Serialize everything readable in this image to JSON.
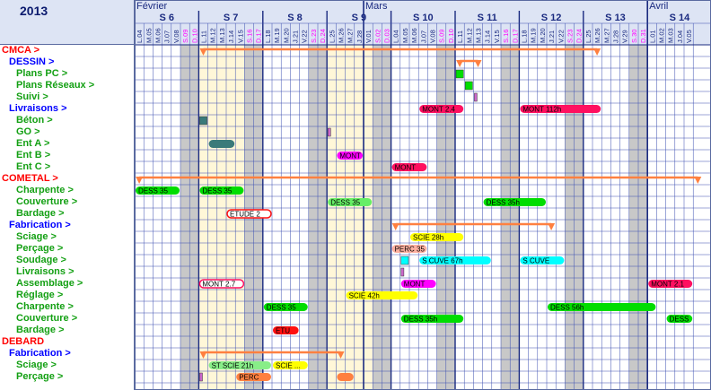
{
  "year": "2013",
  "months": [
    {
      "label": "Février",
      "start_day": 0
    },
    {
      "label": "Mars",
      "start_day": 25
    },
    {
      "label": "Avril",
      "start_day": 56
    }
  ],
  "weeks": [
    {
      "label": "S 6",
      "start_day": 0
    },
    {
      "label": "S 7",
      "start_day": 7
    },
    {
      "label": "S 8",
      "start_day": 14
    },
    {
      "label": "S 9",
      "start_day": 21
    },
    {
      "label": "S 10",
      "start_day": 28
    },
    {
      "label": "S 11",
      "start_day": 35
    },
    {
      "label": "S 12",
      "start_day": 42
    },
    {
      "label": "S 13",
      "start_day": 49
    },
    {
      "label": "S 14",
      "start_day": 56
    }
  ],
  "days": [
    {
      "label": "L.04",
      "weekend": false
    },
    {
      "label": "M.05",
      "weekend": false
    },
    {
      "label": "M.06",
      "weekend": false
    },
    {
      "label": "J.07",
      "weekend": false
    },
    {
      "label": "V.08",
      "weekend": false
    },
    {
      "label": "S.09",
      "weekend": true
    },
    {
      "label": "D.10",
      "weekend": true
    },
    {
      "label": "L.11",
      "weekend": false
    },
    {
      "label": "M.12",
      "weekend": false
    },
    {
      "label": "M.13",
      "weekend": false
    },
    {
      "label": "J.14",
      "weekend": false
    },
    {
      "label": "V.15",
      "weekend": false
    },
    {
      "label": "S.16",
      "weekend": true
    },
    {
      "label": "D.17",
      "weekend": true
    },
    {
      "label": "L.18",
      "weekend": false
    },
    {
      "label": "M.19",
      "weekend": false
    },
    {
      "label": "M.20",
      "weekend": false
    },
    {
      "label": "J.21",
      "weekend": false
    },
    {
      "label": "V.22",
      "weekend": false
    },
    {
      "label": "S.23",
      "weekend": true
    },
    {
      "label": "D.24",
      "weekend": true
    },
    {
      "label": "L.25",
      "weekend": false
    },
    {
      "label": "M.26",
      "weekend": false
    },
    {
      "label": "M.27",
      "weekend": false
    },
    {
      "label": "J.28",
      "weekend": false
    },
    {
      "label": "V.01",
      "weekend": false
    },
    {
      "label": "S.02",
      "weekend": true
    },
    {
      "label": "D.03",
      "weekend": true
    },
    {
      "label": "L.04",
      "weekend": false
    },
    {
      "label": "M.05",
      "weekend": false
    },
    {
      "label": "M.06",
      "weekend": false
    },
    {
      "label": "J.07",
      "weekend": false
    },
    {
      "label": "V.08",
      "weekend": false
    },
    {
      "label": "S.09",
      "weekend": true
    },
    {
      "label": "D.10",
      "weekend": true
    },
    {
      "label": "L.11",
      "weekend": false
    },
    {
      "label": "M.12",
      "weekend": false
    },
    {
      "label": "M.13",
      "weekend": false
    },
    {
      "label": "J.14",
      "weekend": false
    },
    {
      "label": "V.15",
      "weekend": false
    },
    {
      "label": "S.16",
      "weekend": true
    },
    {
      "label": "D.17",
      "weekend": true
    },
    {
      "label": "L.18",
      "weekend": false
    },
    {
      "label": "M.19",
      "weekend": false
    },
    {
      "label": "M.20",
      "weekend": false
    },
    {
      "label": "J.21",
      "weekend": false
    },
    {
      "label": "V.22",
      "weekend": false
    },
    {
      "label": "S.23",
      "weekend": true
    },
    {
      "label": "D.24",
      "weekend": true
    },
    {
      "label": "L.25",
      "weekend": false
    },
    {
      "label": "M.26",
      "weekend": false
    },
    {
      "label": "M.27",
      "weekend": false
    },
    {
      "label": "J.28",
      "weekend": false
    },
    {
      "label": "V.29",
      "weekend": false
    },
    {
      "label": "S.30",
      "weekend": true
    },
    {
      "label": "D.31",
      "weekend": true
    },
    {
      "label": "L.01",
      "weekend": false
    },
    {
      "label": "M.02",
      "weekend": false
    },
    {
      "label": "M.03",
      "weekend": false
    },
    {
      "label": "J.04",
      "weekend": false
    },
    {
      "label": "V.05",
      "weekend": false
    }
  ],
  "holiday_days": [
    7,
    8,
    9,
    10,
    11,
    21,
    22,
    23,
    24,
    25
  ],
  "colors": {
    "group": "#ff0000",
    "subgroup": "#0000ff",
    "task": "#14a014",
    "weekend_text": "#ff00ff",
    "weekend_fill": "#c8c8c8",
    "holiday_fill": "#fff7d8",
    "grid_line": "#3a4db0",
    "header_bg": "#dde4f4",
    "summary": "#ff8040"
  },
  "rows": [
    {
      "label": "CMCA  >",
      "level": "group"
    },
    {
      "label": "DESSIN  >",
      "level": "subgroup"
    },
    {
      "label": "Plans PC  >",
      "level": "task"
    },
    {
      "label": "Plans Réseaux  >",
      "level": "task"
    },
    {
      "label": "Suivi  >",
      "level": "task"
    },
    {
      "label": "Livraisons  >",
      "level": "subgroup"
    },
    {
      "label": "Béton  >",
      "level": "task"
    },
    {
      "label": "GO  >",
      "level": "task"
    },
    {
      "label": "Ent A  >",
      "level": "task"
    },
    {
      "label": "Ent B  >",
      "level": "task"
    },
    {
      "label": "Ent C  >",
      "level": "task"
    },
    {
      "label": "COMETAL  >",
      "level": "group"
    },
    {
      "label": "Charpente  >",
      "level": "task"
    },
    {
      "label": "Couverture  >",
      "level": "task"
    },
    {
      "label": "Bardage  >",
      "level": "task"
    },
    {
      "label": "Fabrication  >",
      "level": "subgroup"
    },
    {
      "label": "Sciage  >",
      "level": "task"
    },
    {
      "label": "Perçage  >",
      "level": "task"
    },
    {
      "label": "Soudage  >",
      "level": "task"
    },
    {
      "label": "Livraisons  >",
      "level": "task"
    },
    {
      "label": "Assemblage  >",
      "level": "task"
    },
    {
      "label": "Réglage  >",
      "level": "task"
    },
    {
      "label": "Charpente  >",
      "level": "task"
    },
    {
      "label": "Couverture  >",
      "level": "task"
    },
    {
      "label": "Bardage  >",
      "level": "task"
    },
    {
      "label": "DEBARD",
      "level": "group"
    },
    {
      "label": "Fabrication  >",
      "level": "subgroup"
    },
    {
      "label": "Sciage  >",
      "level": "task"
    },
    {
      "label": "Perçage  >",
      "level": "task"
    }
  ],
  "summaries": [
    {
      "row": 0,
      "start": 7,
      "end": 50
    },
    {
      "row": 1,
      "start": 35,
      "end": 37
    },
    {
      "row": 11,
      "start": 0,
      "end": 61
    },
    {
      "row": 15,
      "start": 28,
      "end": 45
    },
    {
      "row": 26,
      "start": 7,
      "end": 22
    }
  ],
  "bars": [
    {
      "row": 2,
      "start": 35,
      "end": 36,
      "color": "#00dd00",
      "label": "",
      "style": "box"
    },
    {
      "row": 3,
      "start": 36,
      "end": 37,
      "color": "#00dd00",
      "label": "",
      "style": "box"
    },
    {
      "row": 4,
      "start": 37,
      "end": 37.4,
      "color": "#cc66cc",
      "label": "",
      "style": "box"
    },
    {
      "row": 5,
      "start": 31,
      "end": 36,
      "color": "#ff1060",
      "label": "MONT  2.4",
      "style": "pill"
    },
    {
      "row": 5,
      "start": 42,
      "end": 51,
      "color": "#ff1060",
      "label": "MONT  112h",
      "style": "pill"
    },
    {
      "row": 6,
      "start": 7,
      "end": 8,
      "color": "#3a7a7a",
      "label": "",
      "style": "box"
    },
    {
      "row": 7,
      "start": 21,
      "end": 21.5,
      "color": "#cc66cc",
      "label": "",
      "style": "box"
    },
    {
      "row": 8,
      "start": 8,
      "end": 11,
      "color": "#3a7a7a",
      "label": "",
      "style": "pill"
    },
    {
      "row": 9,
      "start": 22,
      "end": 25,
      "color": "#ff00ff",
      "label": "MONT",
      "style": "pill"
    },
    {
      "row": 10,
      "start": 28,
      "end": 32,
      "color": "#ff1060",
      "label": "MONT",
      "style": "pill"
    },
    {
      "row": 12,
      "start": 0,
      "end": 5,
      "color": "#00dd00",
      "label": "DESS  35",
      "style": "pill"
    },
    {
      "row": 12,
      "start": 7,
      "end": 12,
      "color": "#00dd00",
      "label": "DESS  35",
      "style": "pill"
    },
    {
      "row": 13,
      "start": 21,
      "end": 26,
      "color": "#66ee66",
      "label": "DESS  35",
      "style": "pill"
    },
    {
      "row": 13,
      "start": 38,
      "end": 45,
      "color": "#00dd00",
      "label": "DESS  35h",
      "style": "pill"
    },
    {
      "row": 14,
      "start": 10,
      "end": 15,
      "color": "#ffffff",
      "label": "ETUDE  2",
      "style": "outline-red"
    },
    {
      "row": 16,
      "start": 30,
      "end": 36,
      "color": "#ffff00",
      "label": "SCIE  28h",
      "style": "pill"
    },
    {
      "row": 17,
      "start": 28,
      "end": 32,
      "color": "#ffb0a0",
      "label": "PERC  35",
      "style": "pill"
    },
    {
      "row": 18,
      "start": 29,
      "end": 30,
      "color": "#00ffff",
      "label": "",
      "style": "box"
    },
    {
      "row": 18,
      "start": 31,
      "end": 39,
      "color": "#00ffff",
      "label": "S  CUVE  67h",
      "style": "pill"
    },
    {
      "row": 18,
      "start": 42,
      "end": 47,
      "color": "#00ffff",
      "label": "S  CUVE",
      "style": "pill"
    },
    {
      "row": 19,
      "start": 29,
      "end": 29.5,
      "color": "#cc66cc",
      "label": "",
      "style": "box"
    },
    {
      "row": 20,
      "start": 7,
      "end": 12,
      "color": "#ffffff",
      "label": "MONT  2.7",
      "style": "outline-pink"
    },
    {
      "row": 20,
      "start": 29,
      "end": 33,
      "color": "#ff00ff",
      "label": "MONT",
      "style": "pill"
    },
    {
      "row": 20,
      "start": 56,
      "end": 61,
      "color": "#ff1060",
      "label": "MONT  2.1",
      "style": "pill"
    },
    {
      "row": 21,
      "start": 23,
      "end": 31,
      "color": "#ffff00",
      "label": "SCIE  42h",
      "style": "pill"
    },
    {
      "row": 22,
      "start": 14,
      "end": 19,
      "color": "#00dd00",
      "label": "DESS  35",
      "style": "pill"
    },
    {
      "row": 22,
      "start": 45,
      "end": 57,
      "color": "#00dd00",
      "label": "DESS  56h",
      "style": "pill"
    },
    {
      "row": 23,
      "start": 29,
      "end": 36,
      "color": "#00dd00",
      "label": "DESS  35h",
      "style": "pill"
    },
    {
      "row": 23,
      "start": 58,
      "end": 61,
      "color": "#00dd00",
      "label": "DESS",
      "style": "pill"
    },
    {
      "row": 24,
      "start": 15,
      "end": 18,
      "color": "#ff1010",
      "label": "ETU",
      "style": "pill"
    },
    {
      "row": 27,
      "start": 8,
      "end": 15,
      "color": "#88ee88",
      "label": "ST  SCIE  21h",
      "style": "pill"
    },
    {
      "row": 27,
      "start": 15,
      "end": 19,
      "color": "#ffff00",
      "label": "SCIE  ...",
      "style": "pill"
    },
    {
      "row": 28,
      "start": 7,
      "end": 7.5,
      "color": "#cc66cc",
      "label": "",
      "style": "box"
    },
    {
      "row": 28,
      "start": 11,
      "end": 15,
      "color": "#ff8040",
      "label": "PERC",
      "style": "pill"
    },
    {
      "row": 28,
      "start": 22,
      "end": 24,
      "color": "#ff8040",
      "label": "",
      "style": "pill"
    }
  ]
}
